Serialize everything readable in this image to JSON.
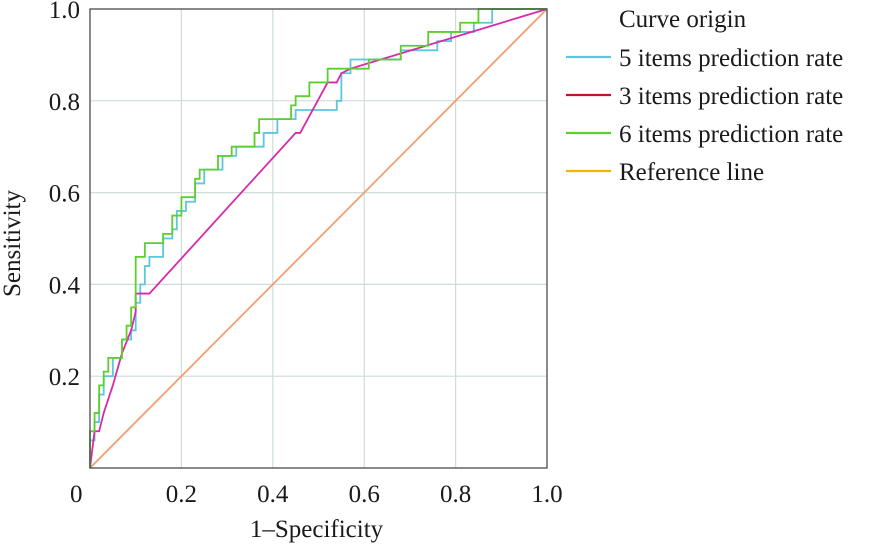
{
  "chart_data": {
    "type": "line",
    "title": "",
    "xlabel": "1–Specificity",
    "ylabel": "Sensitivity",
    "xlim": [
      0,
      1
    ],
    "ylim": [
      0,
      1
    ],
    "grid": true,
    "legend_position": "right",
    "x_ticks": [
      {
        "value": 0,
        "label": "0"
      },
      {
        "value": 0.2,
        "label": "0.2"
      },
      {
        "value": 0.4,
        "label": "0.4"
      },
      {
        "value": 0.6,
        "label": "0.6"
      },
      {
        "value": 0.8,
        "label": "0.8"
      },
      {
        "value": 1.0,
        "label": "1.0"
      }
    ],
    "y_ticks": [
      {
        "value": 0.2,
        "label": "0.2"
      },
      {
        "value": 0.4,
        "label": "0.4"
      },
      {
        "value": 0.6,
        "label": "0.6"
      },
      {
        "value": 0.8,
        "label": "0.8"
      },
      {
        "value": 1.0,
        "label": "1.0"
      }
    ],
    "legend_title": "Curve origin",
    "series": [
      {
        "name": "5 items prediction rate",
        "legend_color": "#5bc8dc",
        "line_color": "#5bc8dc",
        "step": true,
        "points": [
          [
            0,
            0
          ],
          [
            0,
            0.06
          ],
          [
            0.01,
            0.06
          ],
          [
            0.01,
            0.1
          ],
          [
            0.02,
            0.1
          ],
          [
            0.02,
            0.16
          ],
          [
            0.03,
            0.16
          ],
          [
            0.03,
            0.2
          ],
          [
            0.05,
            0.2
          ],
          [
            0.05,
            0.24
          ],
          [
            0.07,
            0.24
          ],
          [
            0.07,
            0.28
          ],
          [
            0.09,
            0.28
          ],
          [
            0.09,
            0.3
          ],
          [
            0.1,
            0.3
          ],
          [
            0.1,
            0.36
          ],
          [
            0.11,
            0.36
          ],
          [
            0.11,
            0.4
          ],
          [
            0.12,
            0.4
          ],
          [
            0.12,
            0.44
          ],
          [
            0.13,
            0.44
          ],
          [
            0.13,
            0.46
          ],
          [
            0.16,
            0.46
          ],
          [
            0.16,
            0.5
          ],
          [
            0.18,
            0.5
          ],
          [
            0.18,
            0.52
          ],
          [
            0.19,
            0.52
          ],
          [
            0.19,
            0.56
          ],
          [
            0.21,
            0.56
          ],
          [
            0.21,
            0.58
          ],
          [
            0.23,
            0.58
          ],
          [
            0.23,
            0.62
          ],
          [
            0.25,
            0.62
          ],
          [
            0.25,
            0.65
          ],
          [
            0.29,
            0.65
          ],
          [
            0.29,
            0.68
          ],
          [
            0.32,
            0.68
          ],
          [
            0.32,
            0.7
          ],
          [
            0.38,
            0.7
          ],
          [
            0.38,
            0.73
          ],
          [
            0.41,
            0.73
          ],
          [
            0.41,
            0.76
          ],
          [
            0.45,
            0.76
          ],
          [
            0.45,
            0.78
          ],
          [
            0.54,
            0.78
          ],
          [
            0.54,
            0.8
          ],
          [
            0.55,
            0.8
          ],
          [
            0.55,
            0.86
          ],
          [
            0.57,
            0.86
          ],
          [
            0.57,
            0.89
          ],
          [
            0.68,
            0.89
          ],
          [
            0.68,
            0.91
          ],
          [
            0.76,
            0.91
          ],
          [
            0.76,
            0.93
          ],
          [
            0.79,
            0.93
          ],
          [
            0.79,
            0.95
          ],
          [
            0.84,
            0.95
          ],
          [
            0.84,
            0.97
          ],
          [
            0.88,
            0.97
          ],
          [
            0.88,
            1.0
          ],
          [
            1.0,
            1.0
          ]
        ]
      },
      {
        "name": "3 items prediction rate",
        "legend_color": "#c0142b",
        "line_color": "#d82aa8",
        "step": false,
        "points": [
          [
            0,
            0
          ],
          [
            0.01,
            0.08
          ],
          [
            0.02,
            0.08
          ],
          [
            0.03,
            0.12
          ],
          [
            0.05,
            0.18
          ],
          [
            0.07,
            0.25
          ],
          [
            0.09,
            0.3
          ],
          [
            0.1,
            0.34
          ],
          [
            0.1,
            0.38
          ],
          [
            0.13,
            0.38
          ],
          [
            0.45,
            0.73
          ],
          [
            0.46,
            0.73
          ],
          [
            0.52,
            0.84
          ],
          [
            0.54,
            0.84
          ],
          [
            0.55,
            0.86
          ],
          [
            0.57,
            0.87
          ],
          [
            1.0,
            1.0
          ]
        ]
      },
      {
        "name": "6 items prediction rate",
        "legend_color": "#5cd02a",
        "line_color": "#5cd02a",
        "step": true,
        "points": [
          [
            0,
            0
          ],
          [
            0,
            0.08
          ],
          [
            0.01,
            0.08
          ],
          [
            0.01,
            0.12
          ],
          [
            0.02,
            0.12
          ],
          [
            0.02,
            0.18
          ],
          [
            0.03,
            0.18
          ],
          [
            0.03,
            0.21
          ],
          [
            0.04,
            0.21
          ],
          [
            0.04,
            0.24
          ],
          [
            0.07,
            0.24
          ],
          [
            0.07,
            0.28
          ],
          [
            0.08,
            0.28
          ],
          [
            0.08,
            0.31
          ],
          [
            0.09,
            0.31
          ],
          [
            0.09,
            0.35
          ],
          [
            0.1,
            0.35
          ],
          [
            0.1,
            0.41
          ],
          [
            0.1,
            0.41
          ],
          [
            0.1,
            0.46
          ],
          [
            0.12,
            0.46
          ],
          [
            0.12,
            0.49
          ],
          [
            0.16,
            0.49
          ],
          [
            0.16,
            0.51
          ],
          [
            0.18,
            0.51
          ],
          [
            0.18,
            0.55
          ],
          [
            0.2,
            0.55
          ],
          [
            0.2,
            0.59
          ],
          [
            0.23,
            0.59
          ],
          [
            0.23,
            0.63
          ],
          [
            0.24,
            0.63
          ],
          [
            0.24,
            0.65
          ],
          [
            0.28,
            0.65
          ],
          [
            0.28,
            0.68
          ],
          [
            0.31,
            0.68
          ],
          [
            0.31,
            0.7
          ],
          [
            0.36,
            0.7
          ],
          [
            0.36,
            0.73
          ],
          [
            0.37,
            0.73
          ],
          [
            0.37,
            0.76
          ],
          [
            0.44,
            0.76
          ],
          [
            0.44,
            0.79
          ],
          [
            0.45,
            0.79
          ],
          [
            0.45,
            0.81
          ],
          [
            0.48,
            0.81
          ],
          [
            0.48,
            0.84
          ],
          [
            0.52,
            0.84
          ],
          [
            0.52,
            0.87
          ],
          [
            0.61,
            0.87
          ],
          [
            0.61,
            0.89
          ],
          [
            0.68,
            0.89
          ],
          [
            0.68,
            0.92
          ],
          [
            0.74,
            0.92
          ],
          [
            0.74,
            0.95
          ],
          [
            0.81,
            0.95
          ],
          [
            0.81,
            0.97
          ],
          [
            0.85,
            0.97
          ],
          [
            0.85,
            1.0
          ],
          [
            1.0,
            1.0
          ]
        ]
      },
      {
        "name": "Reference line",
        "legend_color": "#f2b400",
        "line_color": "#f0a070",
        "step": false,
        "points": [
          [
            0,
            0
          ],
          [
            1,
            1
          ]
        ]
      }
    ]
  }
}
